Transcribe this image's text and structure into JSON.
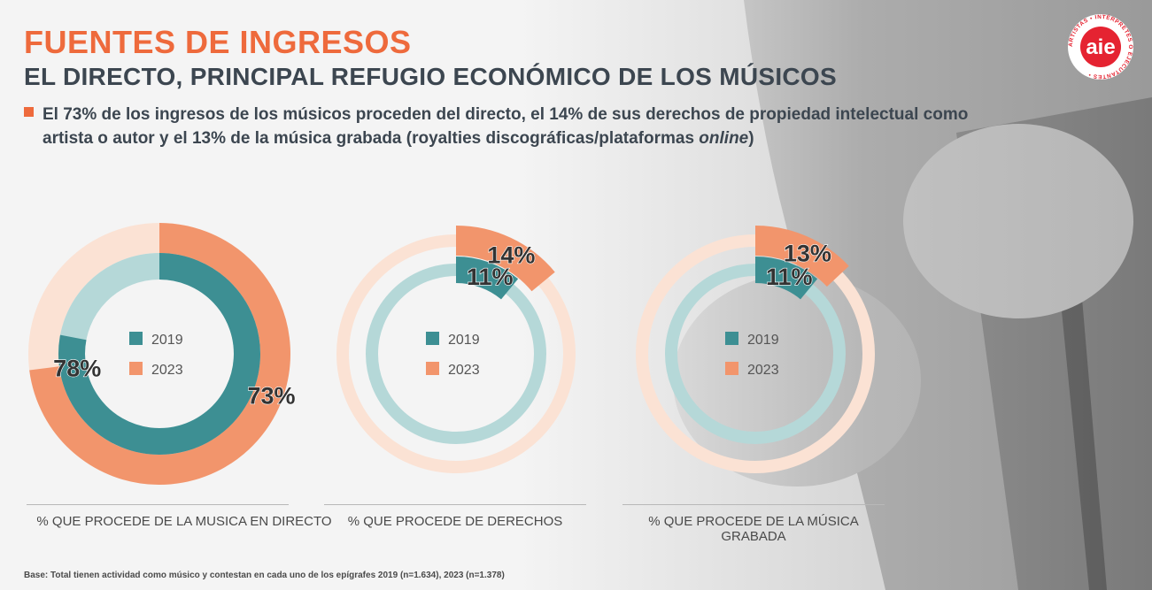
{
  "title": "FUENTES DE INGRESOS",
  "subtitle": "EL DIRECTO, PRINCIPAL REFUGIO ECONÓMICO DE LOS MÚSICOS",
  "bullet": {
    "text_main": "El 73% de los ingresos de los músicos proceden del directo, el 14% de sus derechos de propiedad intelectual como artista o autor y el 13% de la música grabada (royalties discográficas/plataformas ",
    "text_italic": "online",
    "text_end": ")"
  },
  "logo": {
    "brand": "aie",
    "ring_text": "ARTISTAS • INTÉRPRETES O EJECUTANTES •"
  },
  "colors": {
    "orange": "#f2956c",
    "orange_faint": "#fbe2d4",
    "teal": "#3d8f93",
    "teal_light": "#b5d8d8",
    "title_orange": "#ee6a3c",
    "dark_text": "#3c4650"
  },
  "chart_data": [
    {
      "type": "pie",
      "style": "concentric-donut",
      "label": "% QUE PROCEDE DE LA MUSICA EN DIRECTO",
      "series": [
        {
          "name": "2019",
          "value": 78,
          "label": "78%"
        },
        {
          "name": "2023",
          "value": 73,
          "label": "73%"
        }
      ],
      "legend": [
        "2019",
        "2023"
      ]
    },
    {
      "type": "pie",
      "style": "concentric-donut",
      "label": "% QUE PROCEDE DE DERECHOS",
      "series": [
        {
          "name": "2019",
          "value": 11,
          "label": "11%"
        },
        {
          "name": "2023",
          "value": 14,
          "label": "14%"
        }
      ],
      "legend": [
        "2019",
        "2023"
      ]
    },
    {
      "type": "pie",
      "style": "concentric-donut",
      "label": "% QUE PROCEDE DE LA MÚSICA GRABADA",
      "series": [
        {
          "name": "2019",
          "value": 11,
          "label": "11%"
        },
        {
          "name": "2023",
          "value": 13,
          "label": "13%"
        }
      ],
      "legend": [
        "2019",
        "2023"
      ]
    }
  ],
  "footer": "Base: Total tienen actividad como músico y contestan en cada uno de los epígrafes 2019 (n=1.634), 2023 (n=1.378)"
}
